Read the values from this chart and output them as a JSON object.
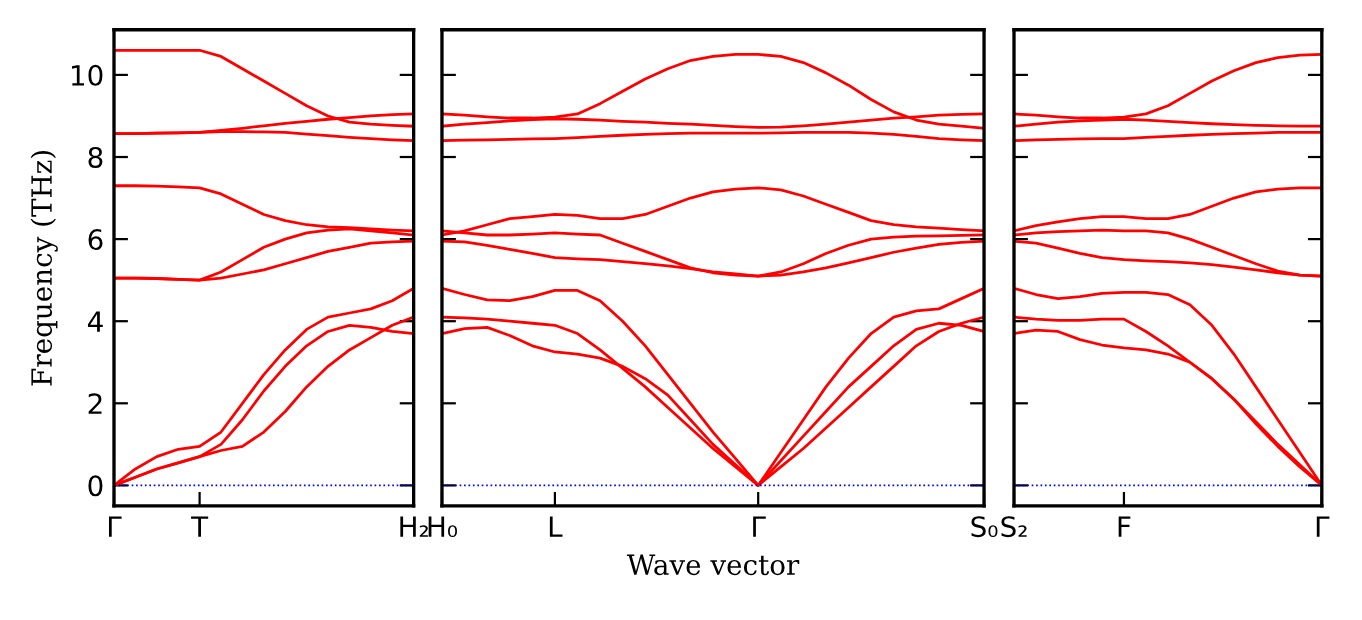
{
  "chart_data": [
    {
      "type": "line",
      "ylabel": "Frequency (THz)",
      "ylim": [
        -0.5,
        11.1
      ],
      "yticks": [
        0,
        2,
        4,
        6,
        8,
        10
      ],
      "marker": "none",
      "line_style": "solid",
      "categories": [
        "Γ",
        null,
        null,
        null,
        "T",
        null,
        null,
        null,
        null,
        null,
        null,
        null,
        null,
        null,
        "H₂"
      ],
      "ref_lines": [
        {
          "axis": "y",
          "value": 0,
          "color": "#0000ff",
          "line_style": "dotted"
        }
      ],
      "series": [
        {
          "color": "#ff0000",
          "values": [
            0,
            0.2,
            0.4,
            0.55,
            0.7,
            0.85,
            0.95,
            1.3,
            1.8,
            2.4,
            2.9,
            3.3,
            3.6,
            3.9,
            4.1
          ]
        },
        {
          "color": "#ff0000",
          "values": [
            0,
            0.2,
            0.4,
            0.55,
            0.7,
            1.0,
            1.6,
            2.3,
            2.9,
            3.4,
            3.75,
            3.9,
            3.85,
            3.75,
            3.7
          ]
        },
        {
          "color": "#ff0000",
          "values": [
            0,
            0.4,
            0.7,
            0.88,
            0.95,
            1.3,
            2.0,
            2.7,
            3.3,
            3.8,
            4.1,
            4.2,
            4.3,
            4.5,
            4.8
          ]
        },
        {
          "color": "#ff0000",
          "values": [
            5.05,
            5.05,
            5.04,
            5.02,
            5.0,
            5.05,
            5.15,
            5.25,
            5.4,
            5.55,
            5.7,
            5.8,
            5.9,
            5.93,
            5.95
          ]
        },
        {
          "color": "#ff0000",
          "values": [
            5.05,
            5.05,
            5.04,
            5.02,
            5.0,
            5.2,
            5.5,
            5.8,
            6.0,
            6.15,
            6.22,
            6.25,
            6.2,
            6.15,
            6.1
          ]
        },
        {
          "color": "#ff0000",
          "values": [
            7.3,
            7.3,
            7.29,
            7.27,
            7.25,
            7.1,
            6.85,
            6.6,
            6.45,
            6.35,
            6.3,
            6.28,
            6.25,
            6.22,
            6.2
          ]
        },
        {
          "color": "#ff0000",
          "values": [
            8.57,
            8.57,
            8.58,
            8.59,
            8.6,
            8.62,
            8.62,
            8.61,
            8.6,
            8.56,
            8.52,
            8.48,
            8.45,
            8.42,
            8.4
          ]
        },
        {
          "color": "#ff0000",
          "values": [
            8.57,
            8.57,
            8.58,
            8.59,
            8.6,
            8.65,
            8.7,
            8.76,
            8.82,
            8.87,
            8.92,
            8.96,
            9.0,
            9.03,
            9.05
          ]
        },
        {
          "color": "#ff0000",
          "values": [
            10.6,
            10.6,
            10.6,
            10.6,
            10.6,
            10.45,
            10.15,
            9.85,
            9.55,
            9.25,
            9.0,
            8.85,
            8.8,
            8.77,
            8.75
          ]
        }
      ]
    },
    {
      "type": "line",
      "xlabel": "Wave vector",
      "ylim": [
        -0.5,
        11.1
      ],
      "yticks": [
        0,
        2,
        4,
        6,
        8,
        10
      ],
      "tick_labels": "x",
      "marker": "none",
      "line_style": "solid",
      "categories": [
        "H₀",
        null,
        null,
        null,
        null,
        "L",
        null,
        null,
        null,
        null,
        null,
        null,
        null,
        null,
        "Γ",
        null,
        null,
        null,
        null,
        null,
        null,
        null,
        null,
        null,
        "S₀"
      ],
      "ref_lines": [
        {
          "axis": "y",
          "value": 0,
          "color": "#0000ff",
          "line_style": "dotted"
        }
      ],
      "series": [
        {
          "color": "#ff0000",
          "values": [
            3.7,
            3.82,
            3.85,
            3.65,
            3.4,
            3.25,
            3.2,
            3.1,
            2.9,
            2.6,
            2.2,
            1.6,
            1.0,
            0.5,
            0,
            0.45,
            0.9,
            1.4,
            1.9,
            2.4,
            2.9,
            3.4,
            3.75,
            3.95,
            4.1
          ]
        },
        {
          "color": "#ff0000",
          "values": [
            4.1,
            4.08,
            4.05,
            4.0,
            3.95,
            3.9,
            3.7,
            3.3,
            2.85,
            2.4,
            1.9,
            1.4,
            0.9,
            0.45,
            0,
            0.6,
            1.2,
            1.8,
            2.4,
            2.9,
            3.4,
            3.8,
            3.95,
            3.9,
            3.75
          ]
        },
        {
          "color": "#ff0000",
          "values": [
            4.8,
            4.65,
            4.52,
            4.5,
            4.6,
            4.75,
            4.75,
            4.5,
            4.0,
            3.4,
            2.7,
            2.0,
            1.3,
            0.65,
            0,
            0.8,
            1.6,
            2.4,
            3.1,
            3.7,
            4.1,
            4.25,
            4.3,
            4.55,
            4.8
          ]
        },
        {
          "color": "#ff0000",
          "values": [
            5.95,
            5.93,
            5.85,
            5.75,
            5.65,
            5.55,
            5.52,
            5.5,
            5.45,
            5.4,
            5.35,
            5.28,
            5.2,
            5.15,
            5.1,
            5.12,
            5.2,
            5.3,
            5.42,
            5.55,
            5.68,
            5.78,
            5.87,
            5.92,
            5.95
          ]
        },
        {
          "color": "#ff0000",
          "values": [
            6.2,
            6.15,
            6.1,
            6.1,
            6.12,
            6.15,
            6.12,
            6.1,
            5.9,
            5.7,
            5.5,
            5.3,
            5.18,
            5.12,
            5.1,
            5.2,
            5.4,
            5.65,
            5.85,
            6.0,
            6.05,
            6.07,
            6.08,
            6.09,
            6.1
          ]
        },
        {
          "color": "#ff0000",
          "values": [
            6.1,
            6.2,
            6.35,
            6.5,
            6.55,
            6.6,
            6.58,
            6.5,
            6.5,
            6.6,
            6.8,
            7.0,
            7.15,
            7.22,
            7.25,
            7.2,
            7.05,
            6.85,
            6.65,
            6.45,
            6.35,
            6.3,
            6.27,
            6.23,
            6.2
          ]
        },
        {
          "color": "#ff0000",
          "values": [
            8.4,
            8.41,
            8.42,
            8.43,
            8.44,
            8.45,
            8.47,
            8.5,
            8.53,
            8.55,
            8.57,
            8.58,
            8.58,
            8.58,
            8.58,
            8.59,
            8.6,
            8.6,
            8.6,
            8.58,
            8.55,
            8.5,
            8.45,
            8.42,
            8.4
          ]
        },
        {
          "color": "#ff0000",
          "values": [
            8.75,
            8.8,
            8.84,
            8.88,
            8.91,
            8.93,
            8.92,
            8.9,
            8.87,
            8.85,
            8.82,
            8.8,
            8.77,
            8.74,
            8.72,
            8.73,
            8.76,
            8.8,
            8.85,
            8.9,
            8.95,
            8.98,
            9.02,
            9.04,
            9.05
          ]
        },
        {
          "color": "#ff0000",
          "values": [
            9.05,
            9.02,
            8.98,
            8.95,
            8.95,
            8.97,
            9.05,
            9.3,
            9.6,
            9.9,
            10.15,
            10.35,
            10.45,
            10.5,
            10.5,
            10.45,
            10.3,
            10.05,
            9.75,
            9.4,
            9.1,
            8.9,
            8.8,
            8.75,
            8.7
          ]
        }
      ]
    },
    {
      "type": "line",
      "ylim": [
        -0.5,
        11.1
      ],
      "yticks": [
        0,
        2,
        4,
        6,
        8,
        10
      ],
      "tick_labels": "x",
      "marker": "none",
      "line_style": "solid",
      "categories": [
        "S₂",
        null,
        null,
        null,
        null,
        "F",
        null,
        null,
        null,
        null,
        null,
        null,
        null,
        null,
        "Γ"
      ],
      "ref_lines": [
        {
          "axis": "y",
          "value": 0,
          "color": "#0000ff",
          "line_style": "dotted"
        }
      ],
      "series": [
        {
          "color": "#ff0000",
          "values": [
            3.7,
            3.78,
            3.75,
            3.55,
            3.42,
            3.35,
            3.3,
            3.2,
            3.0,
            2.6,
            2.1,
            1.5,
            0.95,
            0.45,
            0
          ]
        },
        {
          "color": "#ff0000",
          "values": [
            4.1,
            4.05,
            4.02,
            4.02,
            4.05,
            4.05,
            3.75,
            3.4,
            3.0,
            2.6,
            2.1,
            1.55,
            1.0,
            0.5,
            0
          ]
        },
        {
          "color": "#ff0000",
          "values": [
            4.8,
            4.65,
            4.55,
            4.6,
            4.68,
            4.7,
            4.7,
            4.65,
            4.4,
            3.9,
            3.2,
            2.4,
            1.6,
            0.8,
            0
          ]
        },
        {
          "color": "#ff0000",
          "values": [
            5.95,
            5.9,
            5.78,
            5.65,
            5.55,
            5.5,
            5.47,
            5.45,
            5.42,
            5.38,
            5.32,
            5.25,
            5.18,
            5.12,
            5.1
          ]
        },
        {
          "color": "#ff0000",
          "values": [
            6.1,
            6.15,
            6.18,
            6.2,
            6.22,
            6.2,
            6.2,
            6.15,
            6.0,
            5.8,
            5.6,
            5.4,
            5.22,
            5.12,
            5.1
          ]
        },
        {
          "color": "#ff0000",
          "values": [
            6.2,
            6.33,
            6.42,
            6.5,
            6.55,
            6.55,
            6.5,
            6.5,
            6.6,
            6.8,
            7.0,
            7.15,
            7.22,
            7.25,
            7.25
          ]
        },
        {
          "color": "#ff0000",
          "values": [
            8.4,
            8.42,
            8.43,
            8.44,
            8.45,
            8.45,
            8.48,
            8.5,
            8.53,
            8.55,
            8.57,
            8.58,
            8.6,
            8.6,
            8.6
          ]
        },
        {
          "color": "#ff0000",
          "values": [
            8.75,
            8.8,
            8.85,
            8.88,
            8.9,
            8.92,
            8.9,
            8.87,
            8.84,
            8.81,
            8.79,
            8.77,
            8.76,
            8.75,
            8.75
          ]
        },
        {
          "color": "#ff0000",
          "values": [
            9.05,
            9.02,
            8.98,
            8.95,
            8.95,
            8.97,
            9.05,
            9.25,
            9.55,
            9.85,
            10.1,
            10.3,
            10.42,
            10.48,
            10.5
          ]
        }
      ]
    }
  ]
}
